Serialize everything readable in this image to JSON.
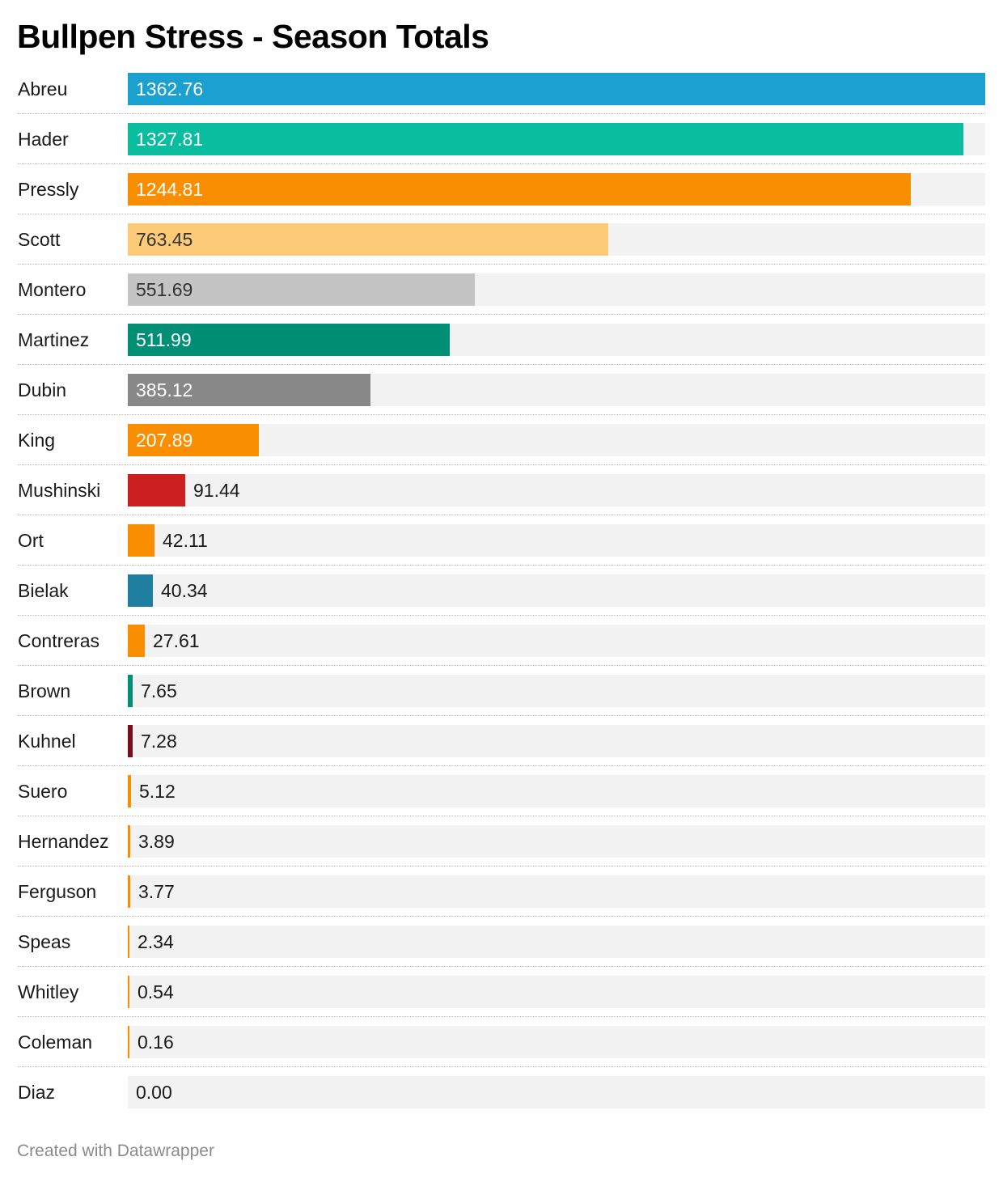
{
  "chart_data": {
    "type": "bar",
    "orientation": "horizontal",
    "title": "Bullpen Stress - Season Totals",
    "xlim": [
      0,
      1362.76
    ],
    "grid": false,
    "categories": [
      "Abreu",
      "Hader",
      "Pressly",
      "Scott",
      "Montero",
      "Martinez",
      "Dubin",
      "King",
      "Mushinski",
      "Ort",
      "Bielak",
      "Contreras",
      "Brown",
      "Kuhnel",
      "Suero",
      "Hernandez",
      "Ferguson",
      "Speas",
      "Whitley",
      "Coleman",
      "Diaz"
    ],
    "values": [
      1362.76,
      1327.81,
      1244.81,
      763.45,
      551.69,
      511.99,
      385.12,
      207.89,
      91.44,
      42.11,
      40.34,
      27.61,
      7.65,
      7.28,
      5.12,
      3.89,
      3.77,
      2.34,
      0.54,
      0.16,
      0.0
    ],
    "value_labels": [
      "1362.76",
      "1327.81",
      "1244.81",
      "763.45",
      "551.69",
      "511.99",
      "385.12",
      "207.89",
      "91.44",
      "42.11",
      "40.34",
      "27.61",
      "7.65",
      "7.28",
      "5.12",
      "3.89",
      "3.77",
      "2.34",
      "0.54",
      "0.16",
      "0.00"
    ],
    "colors": [
      "#1aa1cf",
      "#0bbd9f",
      "#f88e00",
      "#fdca77",
      "#c4c4c4",
      "#008f74",
      "#888888",
      "#f88e00",
      "#cc1f1f",
      "#f88e00",
      "#1f7fa0",
      "#f88e00",
      "#008f74",
      "#7a0d1a",
      "#f88e00",
      "#f88e00",
      "#f88e00",
      "#f88e00",
      "#f88e00",
      "#f88e00",
      "#f88e00"
    ],
    "label_colors": [
      "#ffffff",
      "#ffffff",
      "#ffffff",
      "#333333",
      "#333333",
      "#ffffff",
      "#ffffff",
      "#ffffff",
      "#1a1a1a",
      "#1a1a1a",
      "#1a1a1a",
      "#1a1a1a",
      "#1a1a1a",
      "#1a1a1a",
      "#1a1a1a",
      "#1a1a1a",
      "#1a1a1a",
      "#1a1a1a",
      "#1a1a1a",
      "#1a1a1a",
      "#1a1a1a"
    ],
    "track_color": "#f2f2f2"
  },
  "footer": {
    "credit": "Created with Datawrapper"
  }
}
